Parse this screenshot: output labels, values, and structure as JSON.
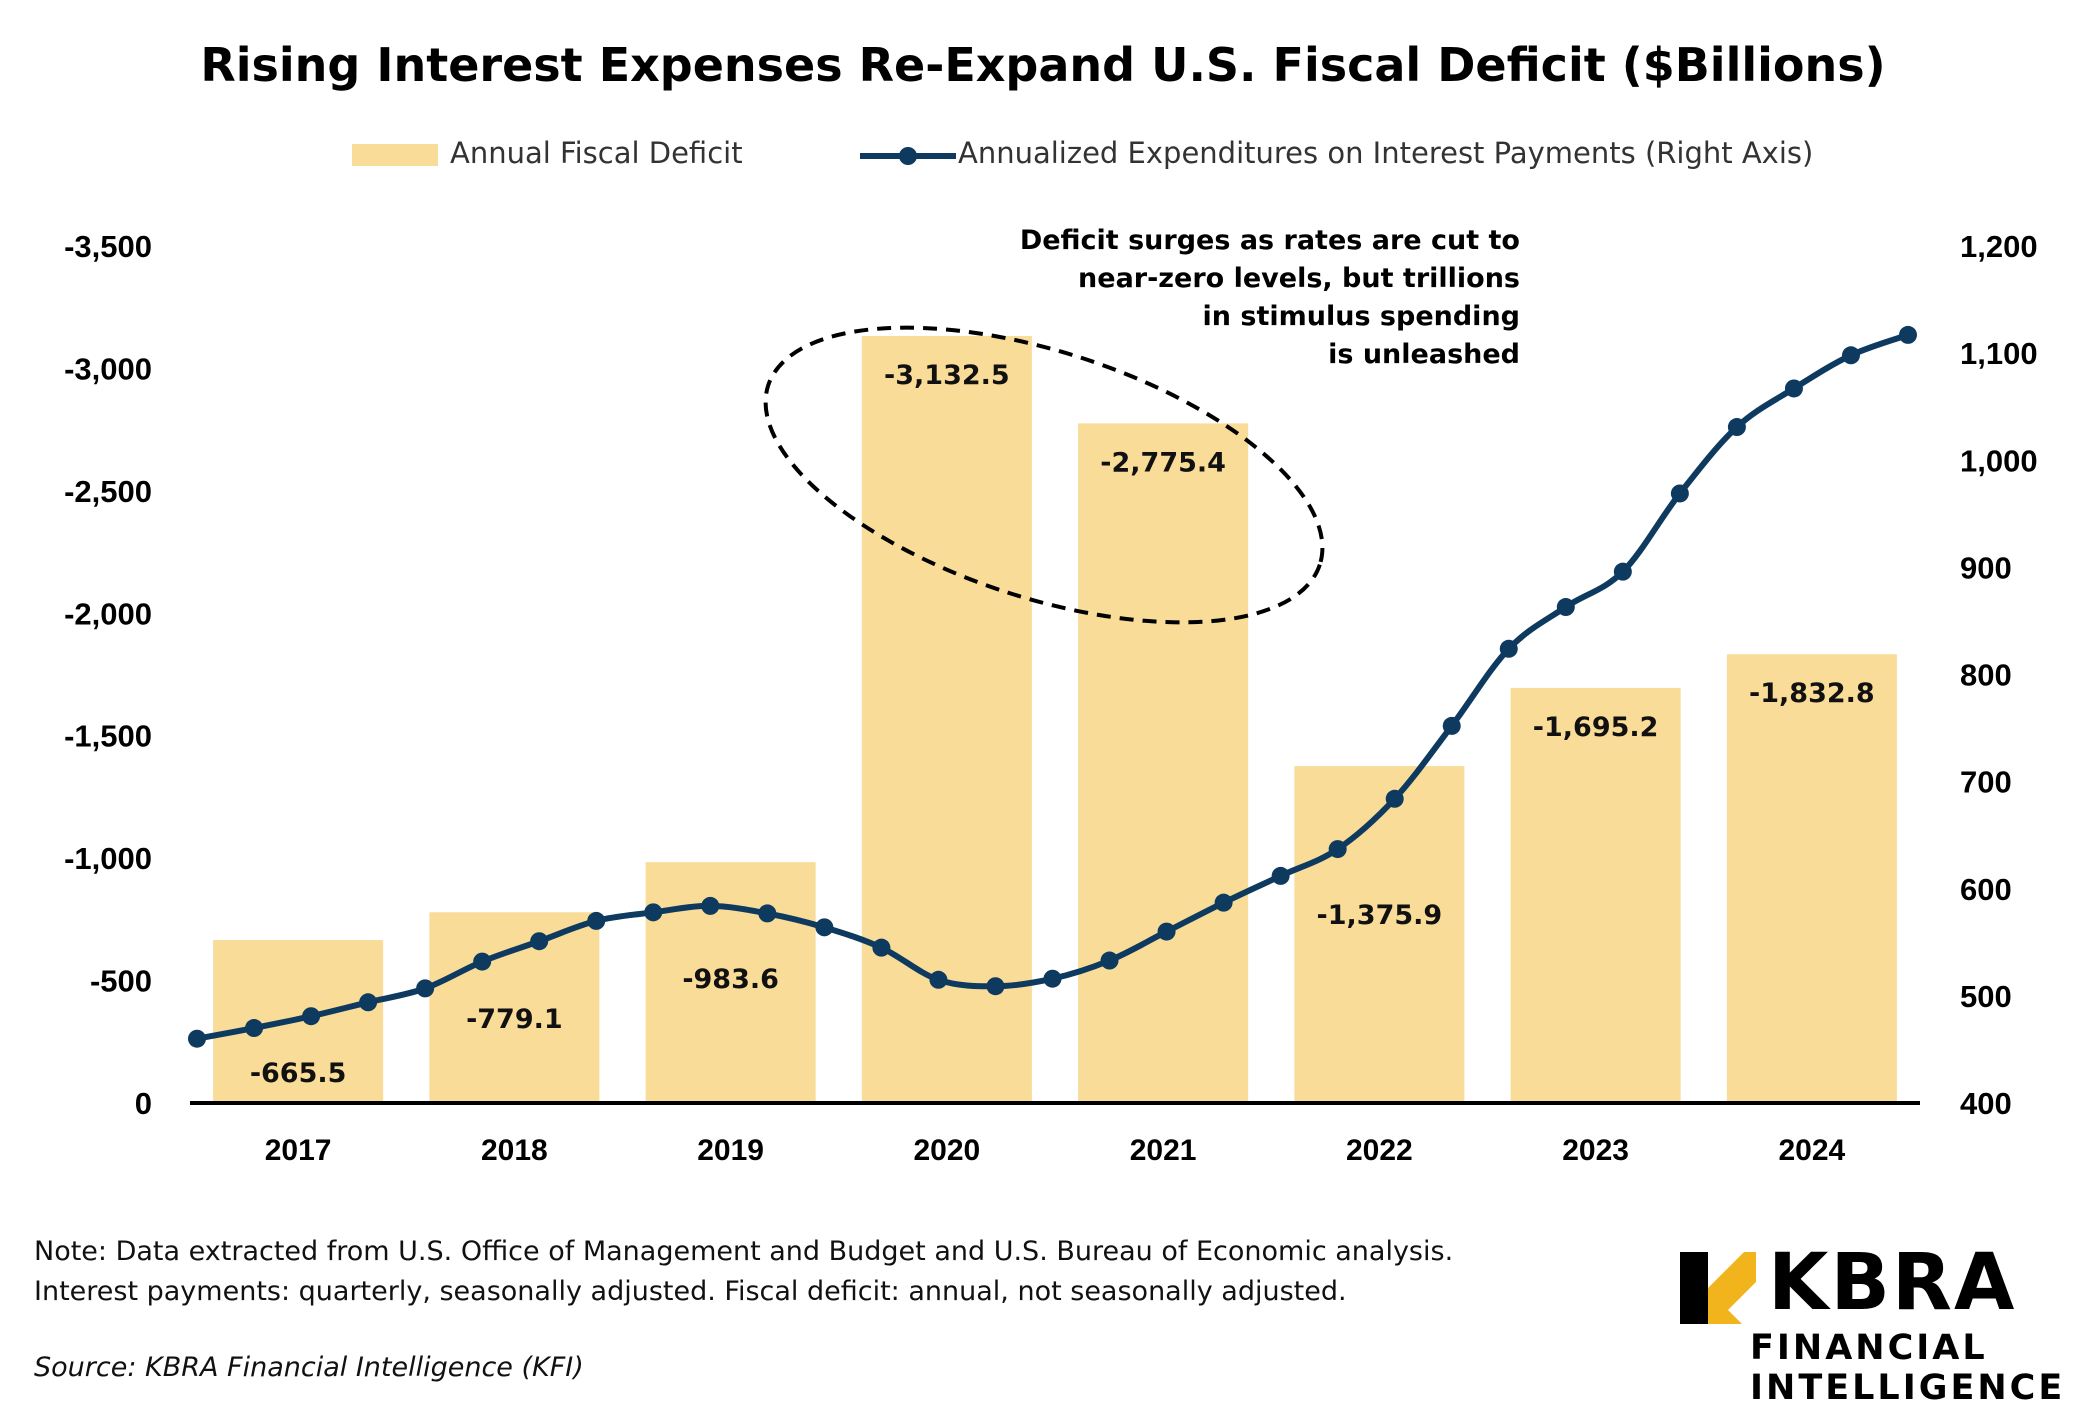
{
  "chart_data": {
    "type": "bar+line",
    "title": "Rising Interest Expenses Re-Expand U.S. Fiscal Deficit ($Billions)",
    "legend": {
      "bars": "Annual Fiscal Deficit",
      "line": "Annualized Expenditures on Interest Payments (Right Axis)"
    },
    "categories": [
      "2017",
      "2018",
      "2019",
      "2020",
      "2021",
      "2022",
      "2023",
      "2024"
    ],
    "bar_values": [
      -665.5,
      -779.1,
      -983.6,
      -3132.5,
      -2775.4,
      -1375.9,
      -1695.2,
      -1832.8
    ],
    "bar_labels": [
      "-665.5",
      "-779.1",
      "-983.6",
      "-3,132.5",
      "-2,775.4",
      "-1,375.9",
      "-1,695.2",
      "-1,832.8"
    ],
    "left_axis": {
      "ticks": [
        0,
        -500,
        -1000,
        -1500,
        -2000,
        -2500,
        -3000,
        -3500
      ],
      "tick_labels": [
        "0",
        "-500",
        "-1,000",
        "-1,500",
        "-2,000",
        "-2,500",
        "-3,000",
        "-3,500"
      ],
      "range": [
        0,
        -3500
      ]
    },
    "right_axis": {
      "ticks": [
        400,
        500,
        600,
        700,
        800,
        900,
        1000,
        1100,
        1200
      ],
      "tick_labels": [
        "400",
        "500",
        "600",
        "700",
        "800",
        "900",
        "1,000",
        "1,100",
        "1,200"
      ],
      "range": [
        400,
        1200
      ]
    },
    "line_series": {
      "name": "Annualized Expenditures on Interest Payments",
      "quarters_start": "2017 Q1",
      "values": [
        460,
        470,
        481,
        494,
        507,
        532,
        551,
        570,
        578,
        584,
        577,
        564,
        545,
        515,
        509,
        516,
        533,
        560,
        587,
        612,
        637,
        684,
        752,
        824,
        863,
        896,
        969,
        1031,
        1067,
        1098,
        1117
      ]
    },
    "annotation": {
      "lines": [
        "Deficit surges as rates are cut to",
        "near-zero levels, but trillions",
        "in stimulus spending",
        "is unleashed"
      ]
    },
    "colors": {
      "bar": "#f8dc98",
      "line": "#0e3a60",
      "axis": "#000000"
    }
  },
  "notes": {
    "line1": "Note: Data extracted from U.S. Office of Management and Budget and U.S. Bureau of Economic analysis.",
    "line2": "Interest payments: quarterly, seasonally adjusted. Fiscal deficit: annual, not seasonally adjusted.",
    "source": "Source: KBRA Financial Intelligence (KFI)"
  },
  "logo": {
    "word": "KBRA",
    "line1": "FINANCIAL",
    "line2": "INTELLIGENCE",
    "mark_color": "#f2b41c"
  }
}
